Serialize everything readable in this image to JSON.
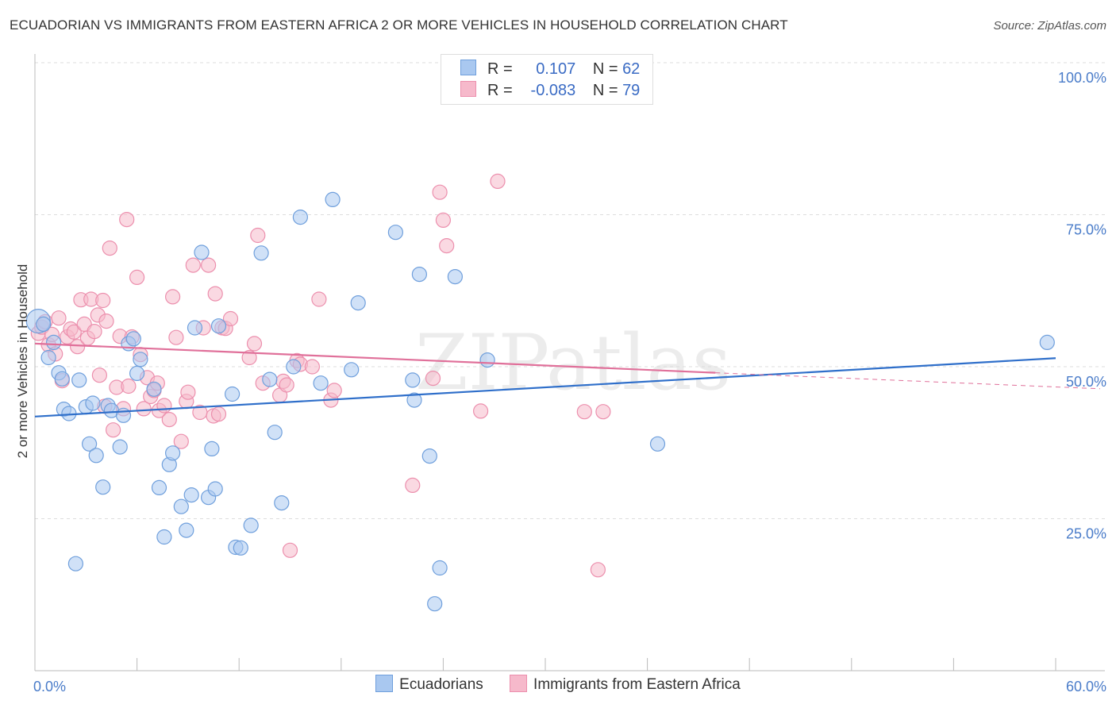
{
  "title": "ECUADORIAN VS IMMIGRANTS FROM EASTERN AFRICA 2 OR MORE VEHICLES IN HOUSEHOLD CORRELATION CHART",
  "source": "Source: ZipAtlas.com",
  "watermark": "ZIPatlas",
  "legend": {
    "row1": {
      "r_label": "R =",
      "r_value": "0.107",
      "n_label": "N =",
      "n_value": "62"
    },
    "row2": {
      "r_label": "R =",
      "r_value": "-0.083",
      "n_label": "N =",
      "n_value": "79"
    }
  },
  "bottom_legend": {
    "series1": "Ecuadorians",
    "series2": "Immigrants from Eastern Africa"
  },
  "colors": {
    "blue_fill": "#a9c8f0",
    "blue_stroke": "#6f9fdc",
    "blue_line": "#2f6fca",
    "pink_fill": "#f6b9cb",
    "pink_stroke": "#ec8fad",
    "pink_line": "#e0709a"
  },
  "chart_data": {
    "type": "scatter",
    "ylabel": "2 or more Vehicles in Household",
    "xlabel": "",
    "xlim": [
      0,
      60
    ],
    "ylim": [
      3,
      100
    ],
    "x_tick_labels": [
      {
        "v": 0,
        "label": "0.0%"
      },
      {
        "v": 60,
        "label": "60.0%"
      }
    ],
    "y_tick_labels": [
      {
        "v": 25,
        "label": "25.0%"
      },
      {
        "v": 50,
        "label": "50.0%"
      },
      {
        "v": 75,
        "label": "75.0%"
      },
      {
        "v": 100,
        "label": "100.0%"
      }
    ],
    "series": [
      {
        "name": "Ecuadorians",
        "trend": [
          [
            0,
            41.8
          ],
          [
            60,
            51.4
          ]
        ],
        "points": [
          [
            0.2,
            57.5
          ],
          [
            0.5,
            57
          ],
          [
            0.8,
            51.5
          ],
          [
            1.1,
            54
          ],
          [
            1.4,
            49
          ],
          [
            1.6,
            48
          ],
          [
            1.7,
            43
          ],
          [
            2.0,
            42.3
          ],
          [
            2.4,
            17.6
          ],
          [
            2.6,
            47.8
          ],
          [
            3.0,
            43.4
          ],
          [
            3.2,
            37.3
          ],
          [
            3.4,
            44
          ],
          [
            3.6,
            35.4
          ],
          [
            4.0,
            30.2
          ],
          [
            4.3,
            43.6
          ],
          [
            4.5,
            42.8
          ],
          [
            5.0,
            36.8
          ],
          [
            5.2,
            42
          ],
          [
            5.5,
            53.8
          ],
          [
            5.8,
            54.6
          ],
          [
            6.0,
            48.9
          ],
          [
            6.2,
            51.2
          ],
          [
            7.0,
            46.3
          ],
          [
            7.3,
            30.1
          ],
          [
            7.6,
            22
          ],
          [
            7.9,
            33.9
          ],
          [
            8.1,
            35.8
          ],
          [
            8.6,
            27
          ],
          [
            8.9,
            23.1
          ],
          [
            9.2,
            28.9
          ],
          [
            9.4,
            56.4
          ],
          [
            9.8,
            68.8
          ],
          [
            10.2,
            28.5
          ],
          [
            10.4,
            36.5
          ],
          [
            10.6,
            29.9
          ],
          [
            10.8,
            56.7
          ],
          [
            11.6,
            45.5
          ],
          [
            11.8,
            20.3
          ],
          [
            12.1,
            20.2
          ],
          [
            12.7,
            23.9
          ],
          [
            13.3,
            68.7
          ],
          [
            13.8,
            47.9
          ],
          [
            14.1,
            39.2
          ],
          [
            14.5,
            27.6
          ],
          [
            15.2,
            50
          ],
          [
            15.6,
            74.6
          ],
          [
            16.8,
            47.3
          ],
          [
            17.5,
            77.5
          ],
          [
            18.6,
            49.5
          ],
          [
            19.0,
            60.5
          ],
          [
            21.2,
            72.1
          ],
          [
            22.2,
            47.8
          ],
          [
            22.3,
            44.5
          ],
          [
            22.6,
            65.2
          ],
          [
            23.2,
            35.3
          ],
          [
            23.8,
            16.9
          ],
          [
            23.5,
            11
          ],
          [
            24.7,
            64.8
          ],
          [
            26.6,
            51.1
          ],
          [
            36.6,
            37.3
          ],
          [
            59.5,
            54
          ]
        ]
      },
      {
        "name": "Immigrants from Eastern Africa",
        "trend": [
          [
            0,
            53.8
          ],
          [
            40,
            49
          ]
        ],
        "trend_ext": [
          [
            40,
            49
          ],
          [
            60,
            46.5
          ]
        ],
        "points": [
          [
            0.2,
            55.5
          ],
          [
            0.4,
            56.5
          ],
          [
            0.6,
            57.4
          ],
          [
            0.8,
            53.6
          ],
          [
            1.0,
            55.3
          ],
          [
            1.2,
            52.1
          ],
          [
            1.4,
            58
          ],
          [
            1.6,
            47.7
          ],
          [
            1.9,
            54.9
          ],
          [
            2.1,
            56.2
          ],
          [
            2.3,
            55.7
          ],
          [
            2.5,
            53.3
          ],
          [
            2.7,
            61
          ],
          [
            2.9,
            57
          ],
          [
            3.1,
            54.7
          ],
          [
            3.3,
            61.1
          ],
          [
            3.5,
            55.8
          ],
          [
            3.7,
            58.5
          ],
          [
            3.8,
            48.6
          ],
          [
            4.0,
            60.9
          ],
          [
            4.1,
            43.5
          ],
          [
            4.2,
            57.5
          ],
          [
            4.4,
            69.5
          ],
          [
            4.6,
            39.6
          ],
          [
            4.8,
            46.6
          ],
          [
            5.0,
            55
          ],
          [
            5.2,
            43.1
          ],
          [
            5.4,
            74.2
          ],
          [
            5.5,
            46.8
          ],
          [
            5.7,
            54.9
          ],
          [
            6.0,
            64.7
          ],
          [
            6.2,
            52
          ],
          [
            6.4,
            43.1
          ],
          [
            6.6,
            48.2
          ],
          [
            6.8,
            45.1
          ],
          [
            7.0,
            46.1
          ],
          [
            7.2,
            47.3
          ],
          [
            7.3,
            42.8
          ],
          [
            7.6,
            43.6
          ],
          [
            7.9,
            41.3
          ],
          [
            8.1,
            61.5
          ],
          [
            8.3,
            54.8
          ],
          [
            8.6,
            37.7
          ],
          [
            8.9,
            44.3
          ],
          [
            9.0,
            45.8
          ],
          [
            9.3,
            66.7
          ],
          [
            9.7,
            42.5
          ],
          [
            9.9,
            56.4
          ],
          [
            10.2,
            66.7
          ],
          [
            10.5,
            41.9
          ],
          [
            10.6,
            62
          ],
          [
            10.8,
            42.2
          ],
          [
            11.0,
            56.4
          ],
          [
            11.2,
            56.3
          ],
          [
            11.5,
            57.9
          ],
          [
            12.6,
            51.5
          ],
          [
            12.9,
            53.8
          ],
          [
            13.1,
            71.6
          ],
          [
            13.4,
            47.3
          ],
          [
            14.4,
            45.3
          ],
          [
            14.6,
            47.6
          ],
          [
            14.8,
            47
          ],
          [
            15.0,
            19.8
          ],
          [
            15.4,
            51
          ],
          [
            15.6,
            50.4
          ],
          [
            16.3,
            50
          ],
          [
            16.7,
            61.1
          ],
          [
            17.4,
            44.5
          ],
          [
            17.6,
            46.1
          ],
          [
            22.2,
            30.5
          ],
          [
            23.4,
            48.1
          ],
          [
            23.8,
            78.7
          ],
          [
            24.0,
            74.1
          ],
          [
            24.2,
            69.9
          ],
          [
            26.2,
            42.7
          ],
          [
            27.2,
            80.5
          ],
          [
            32.3,
            42.6
          ],
          [
            33.1,
            16.6
          ],
          [
            33.4,
            42.6
          ]
        ]
      }
    ],
    "grid": true,
    "legend_position": "top-center"
  }
}
